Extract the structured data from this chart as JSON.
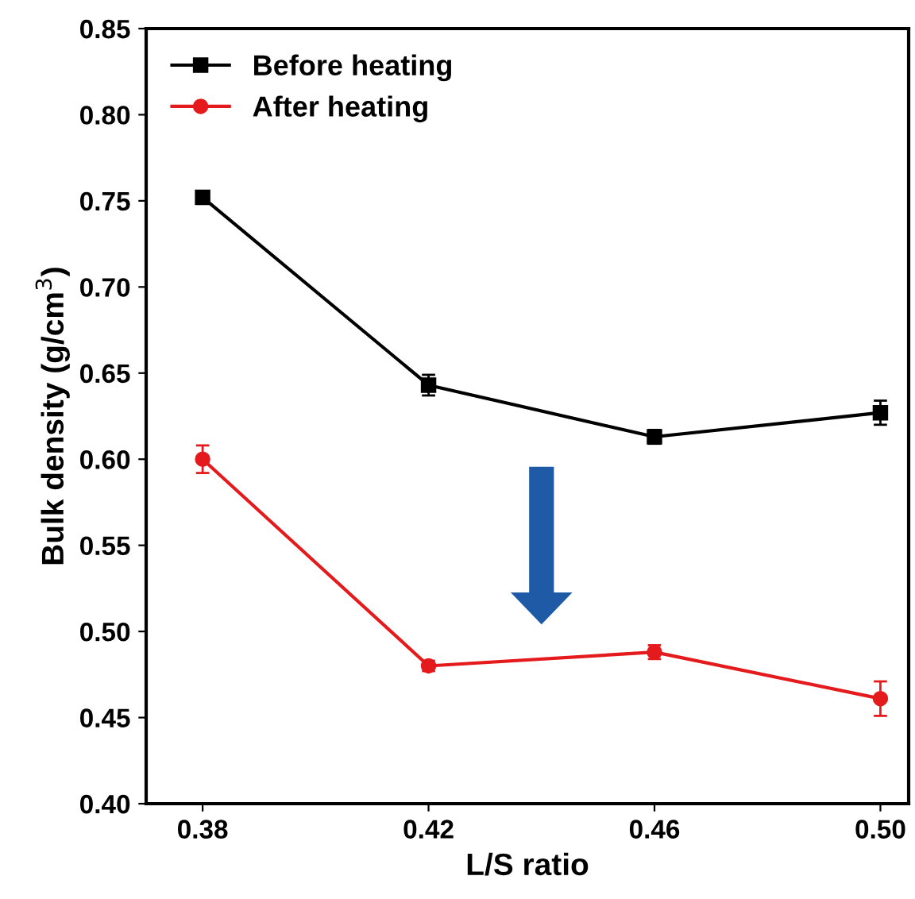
{
  "chart_data": {
    "type": "line",
    "xlabel": "L/S ratio",
    "ylabel": "Bulk density (g/cm$^{3}$)",
    "x": [
      0.38,
      0.42,
      0.46,
      0.5
    ],
    "series": [
      {
        "name": "Before heating",
        "color": "#000000",
        "marker": "square",
        "values": [
          0.752,
          0.643,
          0.613,
          0.627
        ],
        "errors": [
          0.002,
          0.006,
          0.004,
          0.007
        ]
      },
      {
        "name": "After heating",
        "color": "#e41a1c",
        "marker": "circle",
        "values": [
          0.6,
          0.48,
          0.488,
          0.461
        ],
        "errors": [
          0.008,
          0.003,
          0.004,
          0.01
        ]
      }
    ],
    "xlim": [
      0.37,
      0.505
    ],
    "xticks": [
      {
        "value": 0.38,
        "label": "0.38"
      },
      {
        "value": 0.42,
        "label": "0.42"
      },
      {
        "value": 0.46,
        "label": "0.46"
      },
      {
        "value": 0.5,
        "label": "0.50"
      }
    ],
    "ylim": [
      0.4,
      0.85
    ],
    "yticks": [
      {
        "value": 0.4,
        "label": "0.40"
      },
      {
        "value": 0.45,
        "label": "0.45"
      },
      {
        "value": 0.5,
        "label": "0.50"
      },
      {
        "value": 0.55,
        "label": "0.55"
      },
      {
        "value": 0.6,
        "label": "0.60"
      },
      {
        "value": 0.65,
        "label": "0.65"
      },
      {
        "value": 0.7,
        "label": "0.70"
      },
      {
        "value": 0.75,
        "label": "0.75"
      },
      {
        "value": 0.8,
        "label": "0.80"
      },
      {
        "value": 0.85,
        "label": "0.85"
      }
    ],
    "grid": false,
    "legend": "top left",
    "line_style": "solid"
  }
}
